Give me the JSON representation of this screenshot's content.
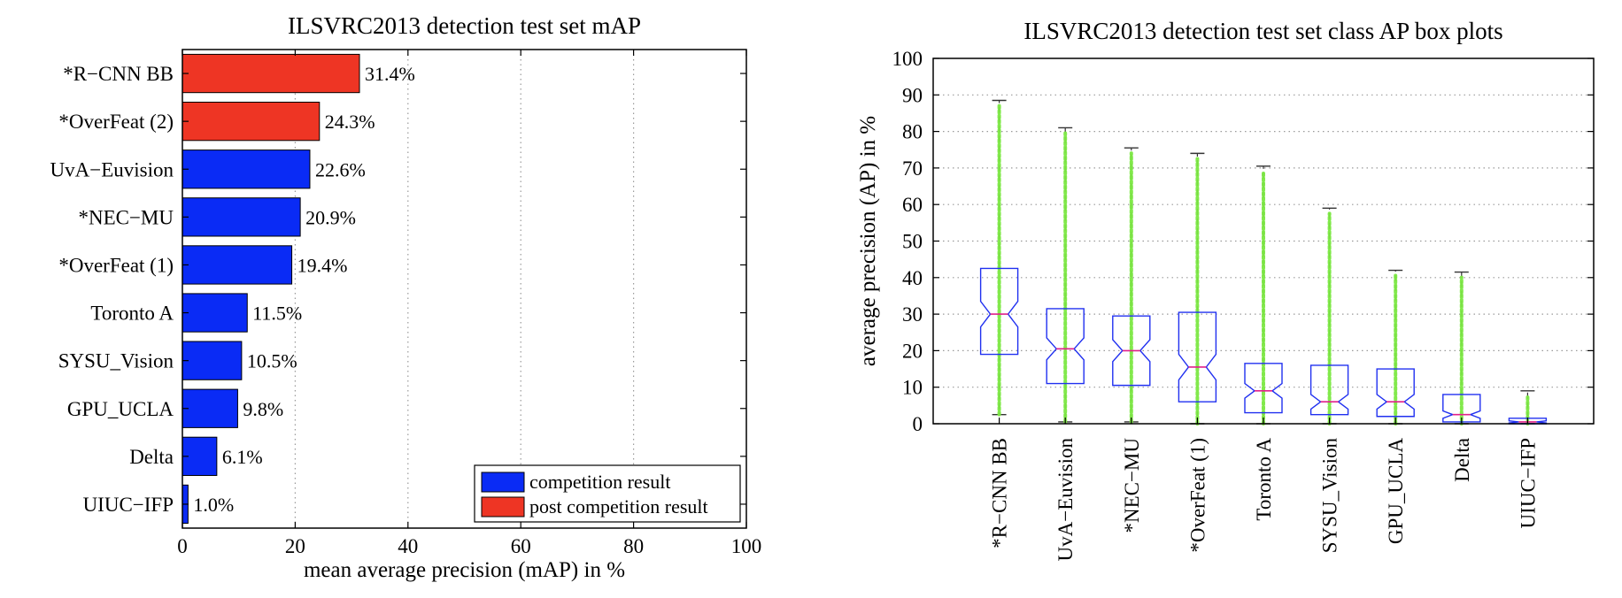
{
  "chart_data": [
    {
      "type": "bar",
      "orientation": "horizontal",
      "title": "ILSVRC2013 detection test set mAP",
      "xlabel": "mean average precision (mAP) in %",
      "ylabel": "",
      "xlim": [
        0,
        100
      ],
      "xticks": [
        "0",
        "20",
        "40",
        "60",
        "80",
        "100"
      ],
      "grid": "vertical dotted",
      "legend_position": "bottom-right",
      "categories": [
        "*R−CNN BB",
        "*OverFeat (2)",
        "UvA−Euvision",
        "*NEC−MU",
        "*OverFeat (1)",
        "Toronto A",
        "SYSU_Vision",
        "GPU_UCLA",
        "Delta",
        "UIUC−IFP"
      ],
      "values": [
        31.4,
        24.3,
        22.6,
        20.9,
        19.4,
        11.5,
        10.5,
        9.8,
        6.1,
        1.0
      ],
      "value_labels": [
        "31.4%",
        "24.3%",
        "22.6%",
        "20.9%",
        "19.4%",
        "11.5%",
        "10.5%",
        "9.8%",
        "6.1%",
        "1.0%"
      ],
      "groups": [
        "post",
        "post",
        "comp",
        "comp",
        "comp",
        "comp",
        "comp",
        "comp",
        "comp",
        "comp"
      ],
      "legend": [
        {
          "key": "comp",
          "label": "competition result",
          "color": "#0a2bf5"
        },
        {
          "key": "post",
          "label": "post competition result",
          "color": "#ee3524"
        }
      ]
    },
    {
      "type": "box",
      "title": "ILSVRC2013 detection test set class AP box plots",
      "ylabel": "average precision (AP) in %",
      "xlabel": "",
      "ylim": [
        0,
        100
      ],
      "yticks": [
        "0",
        "10",
        "20",
        "30",
        "40",
        "50",
        "60",
        "70",
        "80",
        "90",
        "100"
      ],
      "grid": "horizontal dotted",
      "categories": [
        "*R−CNN BB",
        "UvA−Euvision",
        "*NEC−MU",
        "*OverFeat (1)",
        "Toronto A",
        "SYSU_Vision",
        "GPU_UCLA",
        "Delta",
        "UIUC−IFP"
      ],
      "boxes": [
        {
          "min": 2.5,
          "q1": 19,
          "median": 30,
          "q3": 42.5,
          "max": 88.5,
          "notch_lo": 26.5,
          "notch_hi": 33.5
        },
        {
          "min": 0.5,
          "q1": 11,
          "median": 20.5,
          "q3": 31.5,
          "max": 81,
          "notch_lo": 17.5,
          "notch_hi": 23.5
        },
        {
          "min": 0.5,
          "q1": 10.5,
          "median": 20,
          "q3": 29.5,
          "max": 75.5,
          "notch_lo": 17,
          "notch_hi": 23
        },
        {
          "min": 0,
          "q1": 6,
          "median": 15.5,
          "q3": 30.5,
          "max": 74,
          "notch_lo": 12,
          "notch_hi": 19
        },
        {
          "min": 0,
          "q1": 3,
          "median": 9,
          "q3": 16.5,
          "max": 70.5,
          "notch_lo": 7,
          "notch_hi": 11
        },
        {
          "min": 0,
          "q1": 2.5,
          "median": 6,
          "q3": 16,
          "max": 59,
          "notch_lo": 4,
          "notch_hi": 8
        },
        {
          "min": 0,
          "q1": 2,
          "median": 6,
          "q3": 15,
          "max": 42,
          "notch_lo": 4,
          "notch_hi": 8
        },
        {
          "min": 0,
          "q1": 0.5,
          "median": 2.5,
          "q3": 8,
          "max": 41.5,
          "notch_lo": 1.5,
          "notch_hi": 3.5
        },
        {
          "min": 0,
          "q1": 0,
          "median": 0.5,
          "q3": 1.5,
          "max": 9,
          "notch_lo": 0.2,
          "notch_hi": 0.8
        }
      ],
      "colors": {
        "box": "#2030f0",
        "median": "#e0208a",
        "whisker": "#333333",
        "points": "#7ce843"
      }
    }
  ]
}
